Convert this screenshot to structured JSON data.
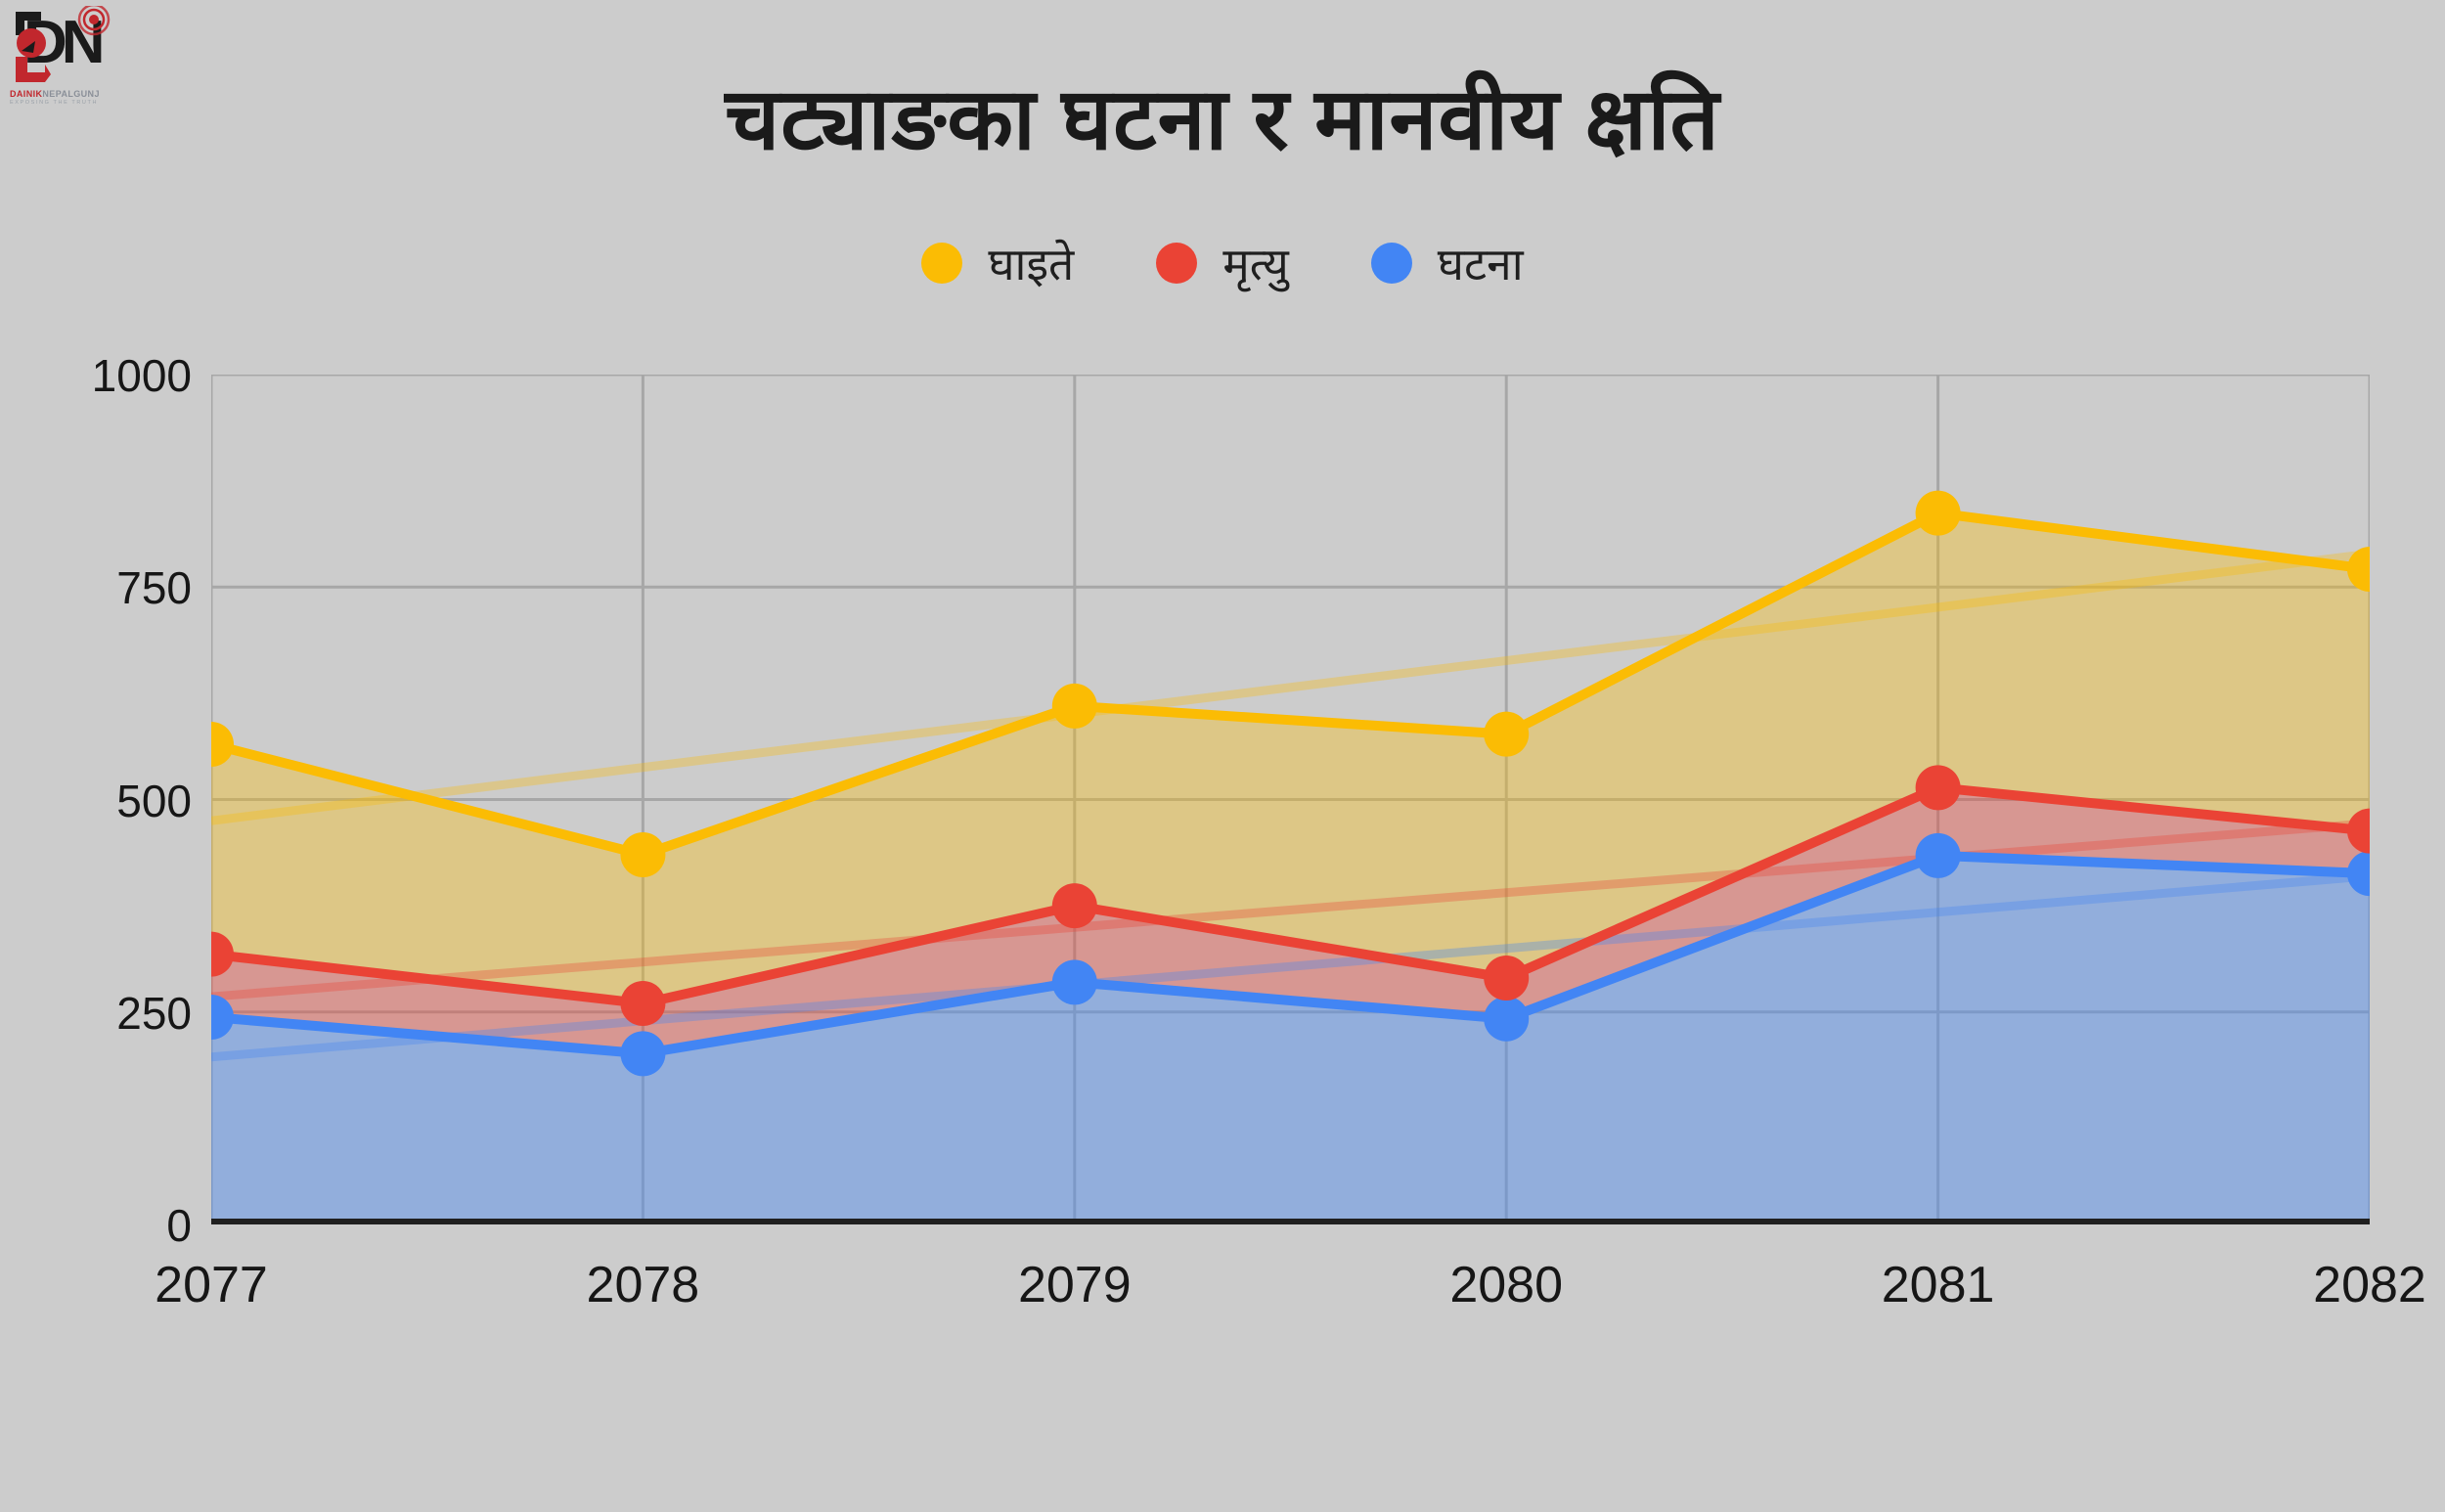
{
  "page": {
    "background": "#CCCCCC"
  },
  "logo": {
    "text_primary": "DAINIK",
    "text_secondary": "NEPALGUNJ",
    "tagline": "EXPOSING THE TRUTH",
    "red": "#C1272D",
    "black": "#1A1A1A"
  },
  "chart_data": {
    "type": "area",
    "title": "चट्याङका घटना र मानवीय क्षति",
    "x": [
      "2077",
      "2078",
      "2079",
      "2080",
      "2081",
      "2082"
    ],
    "series": [
      {
        "name": "घाइते",
        "color": "#FBBC04",
        "band_fill": "rgba(251,188,4,0.35)",
        "values": [
          565,
          435,
          610,
          577,
          837,
          771
        ],
        "trend": {
          "start": 475,
          "end": 789
        }
      },
      {
        "name": "मृत्यु",
        "color": "#EA4335",
        "band_fill": "rgba(234,67,53,0.38)",
        "values": [
          318,
          260,
          375,
          290,
          514,
          463
        ],
        "trend": {
          "start": 268,
          "end": 472
        }
      },
      {
        "name": "घटना",
        "color": "#4285F4",
        "band_fill": "rgba(66,133,244,0.42)",
        "values": [
          244,
          201,
          285,
          242,
          434,
          413
        ],
        "trend": {
          "start": 197,
          "end": 410
        }
      }
    ],
    "ylim": [
      0,
      1000
    ],
    "yticks": [
      0,
      250,
      500,
      750,
      1000
    ],
    "grid": true,
    "legend_position": "top",
    "gridline_color": "#A7A7A7",
    "axis_line_color": "#1F1F1F",
    "line_width": 10,
    "marker_radius": 23,
    "trend_opacity": 0.32
  }
}
